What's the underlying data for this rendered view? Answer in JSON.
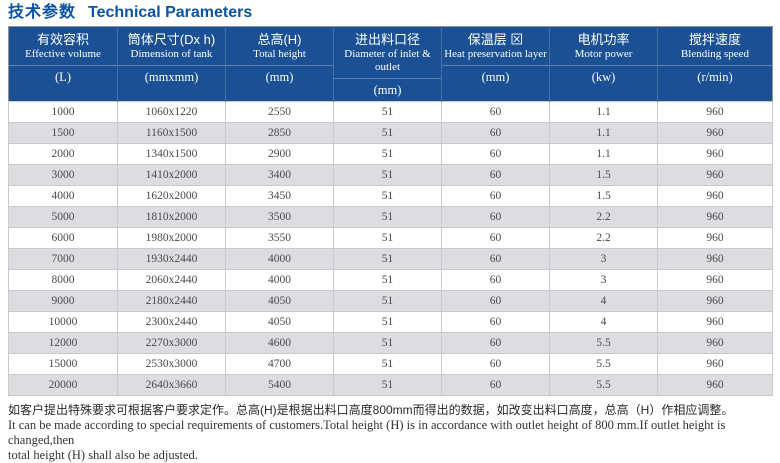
{
  "title": {
    "zh": "技术参数",
    "en": "Technical Parameters"
  },
  "table": {
    "columns": [
      {
        "zh": "有效容积",
        "en": "Effective volume",
        "unit": "(L)"
      },
      {
        "zh": "筒体尺寸(Dx h)",
        "en": "Dimension of tank",
        "unit": "(mmxmm)"
      },
      {
        "zh": "总高(H)",
        "en": "Total height",
        "unit": "(mm)"
      },
      {
        "zh": "进出料口径",
        "en": "Diameter of inlet & outlet",
        "unit": "(mm)"
      },
      {
        "zh": "保温层 ⊠",
        "en": "Heat preservation layer",
        "unit": "(mm)"
      },
      {
        "zh": "电机功率",
        "en": "Motor power",
        "unit": "(kw)"
      },
      {
        "zh": "搅拌速度",
        "en": "Blending speed",
        "unit": "(r/min)"
      }
    ],
    "rows": [
      [
        "1000",
        "1060x1220",
        "2550",
        "51",
        "60",
        "1.1",
        "960"
      ],
      [
        "1500",
        "1160x1500",
        "2850",
        "51",
        "60",
        "1.1",
        "960"
      ],
      [
        "2000",
        "1340x1500",
        "2900",
        "51",
        "60",
        "1.1",
        "960"
      ],
      [
        "3000",
        "1410x2000",
        "3400",
        "51",
        "60",
        "1.5",
        "960"
      ],
      [
        "4000",
        "1620x2000",
        "3450",
        "51",
        "60",
        "1.5",
        "960"
      ],
      [
        "5000",
        "1810x2000",
        "3500",
        "51",
        "60",
        "2.2",
        "960"
      ],
      [
        "6000",
        "1980x2000",
        "3550",
        "51",
        "60",
        "2.2",
        "960"
      ],
      [
        "7000",
        "1930x2440",
        "4000",
        "51",
        "60",
        "3",
        "960"
      ],
      [
        "8000",
        "2060x2440",
        "4000",
        "51",
        "60",
        "3",
        "960"
      ],
      [
        "9000",
        "2180x2440",
        "4050",
        "51",
        "60",
        "4",
        "960"
      ],
      [
        "10000",
        "2300x2440",
        "4050",
        "51",
        "60",
        "4",
        "960"
      ],
      [
        "12000",
        "2270x3000",
        "4600",
        "51",
        "60",
        "5.5",
        "960"
      ],
      [
        "15000",
        "2530x3000",
        "4700",
        "51",
        "60",
        "5.5",
        "960"
      ],
      [
        "20000",
        "2640x3660",
        "5400",
        "51",
        "60",
        "5.5",
        "960"
      ]
    ]
  },
  "footnote": {
    "zh": "如客户提出特殊要求可根据客户要求定作。总高(H)是根据出料口高度800mm而得出的数据，如改变出料口高度，总高（H）作相应调整。",
    "en_line1": "It can be made according to special requirements of customers.Total height (H) is in accordance with outlet height of 800 mm.If outlet height is changed,then",
    "en_line2": "total height (H) shall also be adjusted."
  },
  "colors": {
    "header_bg": "#1b5095",
    "title_blue": "#0b53a4",
    "stripe_gray": "#dcdde0",
    "header_divider": "#5d83b6"
  }
}
